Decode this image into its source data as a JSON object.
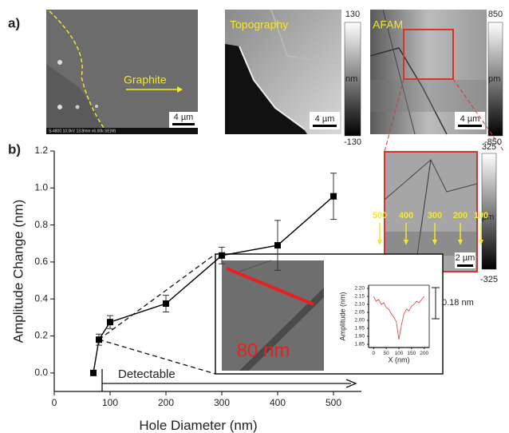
{
  "panels": {
    "a_label": "a)",
    "b_label": "b)",
    "sem": {
      "label": "Graphite",
      "scale": "4 µm",
      "info": "S-4800 10.0kV 13.8mm x6.00k SE(M)"
    },
    "topography": {
      "title": "Topography",
      "scale": "4 µm",
      "colorbar": [
        "130",
        "nm",
        "-130"
      ]
    },
    "afam": {
      "title": "AFAM",
      "scale": "4 µm",
      "colorbar": [
        "850",
        "pm",
        "-850"
      ]
    },
    "zoom": {
      "scale": "2 µm",
      "colorbar": [
        "325",
        "pm",
        "-325"
      ],
      "holes": [
        "500",
        "400",
        "300",
        "200",
        "100"
      ]
    },
    "inset_image_label": "80 nm",
    "detectable": "Detectable"
  },
  "chart_data": [
    {
      "type": "line",
      "xlabel": "Hole Diameter (nm)",
      "ylabel": "Amplitude Change (nm)",
      "x": [
        70,
        80,
        100,
        200,
        300,
        400,
        500
      ],
      "series": [
        {
          "color": "#000000",
          "values": [
            0.0,
            0.18,
            0.275,
            0.375,
            0.635,
            0.69,
            0.955
          ],
          "errors": [
            null,
            0.03,
            0.035,
            0.045,
            0.045,
            0.135,
            0.125
          ]
        }
      ],
      "xlim": [
        0,
        550
      ],
      "ylim": [
        -0.1,
        1.2
      ],
      "xticks": [
        0,
        100,
        200,
        300,
        400,
        500
      ],
      "yticks": [
        {
          "value": 0,
          "label": "0.0"
        },
        0.2,
        0.4,
        0.6,
        0.8,
        {
          "value": 1,
          "label": "1.0"
        },
        1.2
      ]
    },
    {
      "type": "line",
      "xlabel": "X (nm)",
      "ylabel": "Amplitude (nm)",
      "annotation": "0.18 nm",
      "x": [
        0,
        10,
        20,
        30,
        40,
        50,
        60,
        70,
        80,
        90,
        100,
        110,
        120,
        130,
        140,
        150,
        160,
        170,
        180,
        190,
        200
      ],
      "series": [
        {
          "color": "#e03a3a",
          "values": [
            2.15,
            2.12,
            2.13,
            2.1,
            2.11,
            2.08,
            2.07,
            2.04,
            2.02,
            1.99,
            1.88,
            1.97,
            2.04,
            2.07,
            2.06,
            2.09,
            2.1,
            2.12,
            2.11,
            2.13,
            2.15
          ]
        }
      ],
      "xlim": [
        -20,
        220
      ],
      "ylim": [
        1.83,
        2.22
      ],
      "xticks": [
        0,
        50,
        100,
        150,
        200
      ],
      "yticks": [
        1.85,
        {
          "value": 1.9,
          "label": "1.90"
        },
        1.95,
        {
          "value": 2,
          "label": "2.00"
        },
        2.05,
        {
          "value": 2.1,
          "label": "2.10"
        },
        2.15,
        {
          "value": 2.2,
          "label": "2.20"
        }
      ]
    }
  ]
}
